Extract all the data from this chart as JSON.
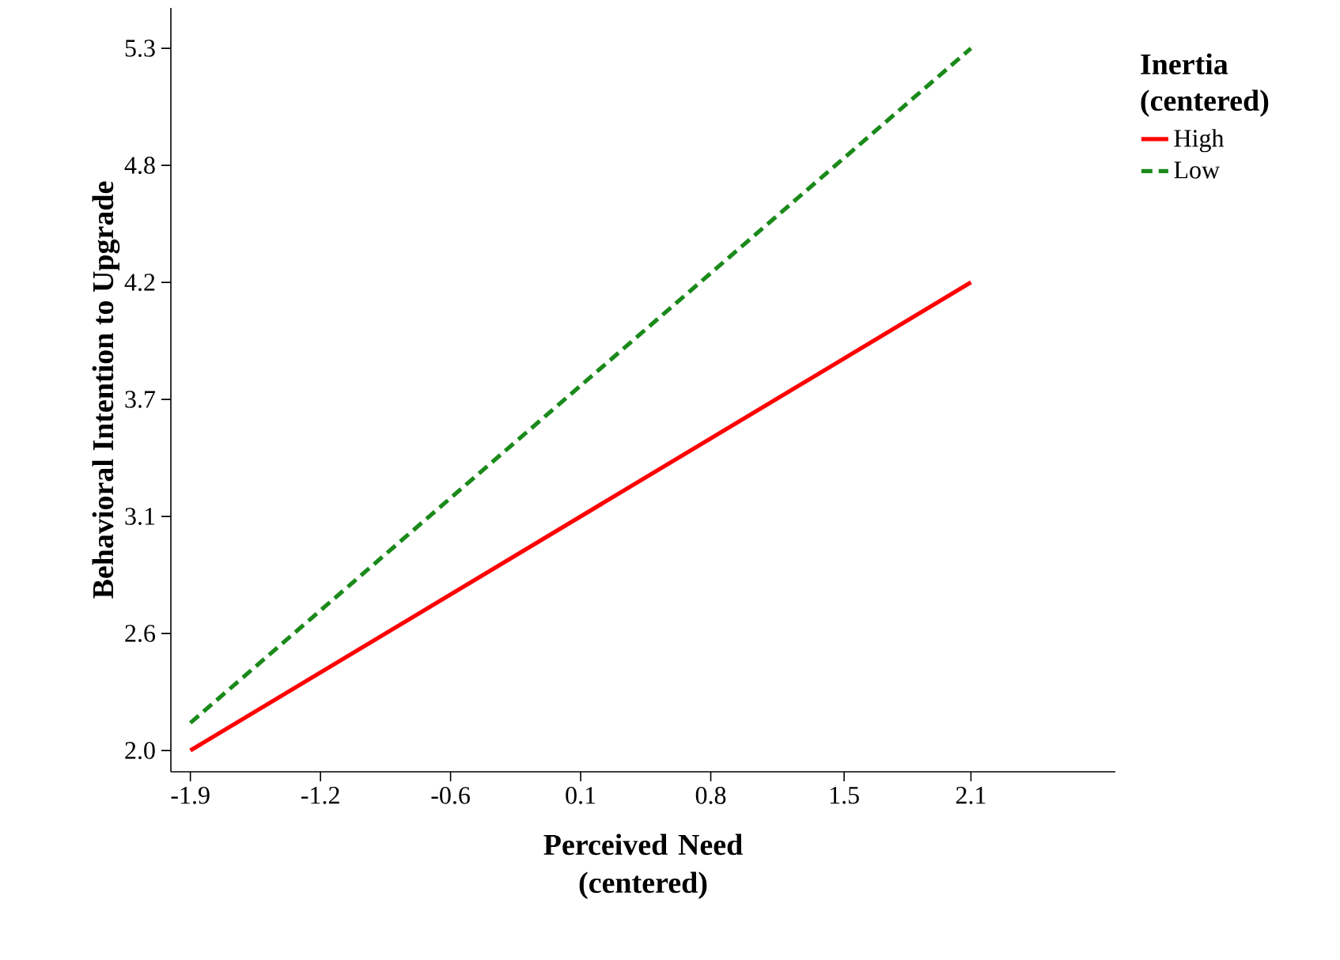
{
  "chart_data": {
    "type": "line",
    "xlabel": "Perceived Need (centered)",
    "ylabel": "Behavioral Intention to Upgrade",
    "legend_title": "Inertia (centered)",
    "x": [
      -1.9,
      2.1
    ],
    "series": [
      {
        "name": "High",
        "color": "#ff0000",
        "values": [
          2.0,
          4.2
        ],
        "line_style": "solid"
      },
      {
        "name": "Low",
        "color": "#1a8a1a",
        "values": [
          2.13,
          5.3
        ],
        "line_style": "dashed"
      }
    ],
    "xlim": [
      -2.0,
      2.84
    ],
    "ylim": [
      1.9,
      5.49
    ],
    "xticks": [
      {
        "value": -1.9,
        "label": "-1.9"
      },
      {
        "value": -1.2333,
        "label": "-1.2"
      },
      {
        "value": -0.5667,
        "label": "-0.6"
      },
      {
        "value": 0.1,
        "label": "0.1"
      },
      {
        "value": 0.7667,
        "label": "0.8"
      },
      {
        "value": 1.45,
        "label": "1.5"
      },
      {
        "value": 2.1,
        "label": "2.1"
      }
    ],
    "yticks": [
      {
        "value": 2.0,
        "label": "2.0"
      },
      {
        "value": 2.55,
        "label": "2.6"
      },
      {
        "value": 3.1,
        "label": "3.1"
      },
      {
        "value": 3.65,
        "label": "3.7"
      },
      {
        "value": 4.2,
        "label": "4.2"
      },
      {
        "value": 4.75,
        "label": "4.8"
      },
      {
        "value": 5.3,
        "label": "5.3"
      }
    ],
    "grid": false,
    "legend": "top right"
  }
}
